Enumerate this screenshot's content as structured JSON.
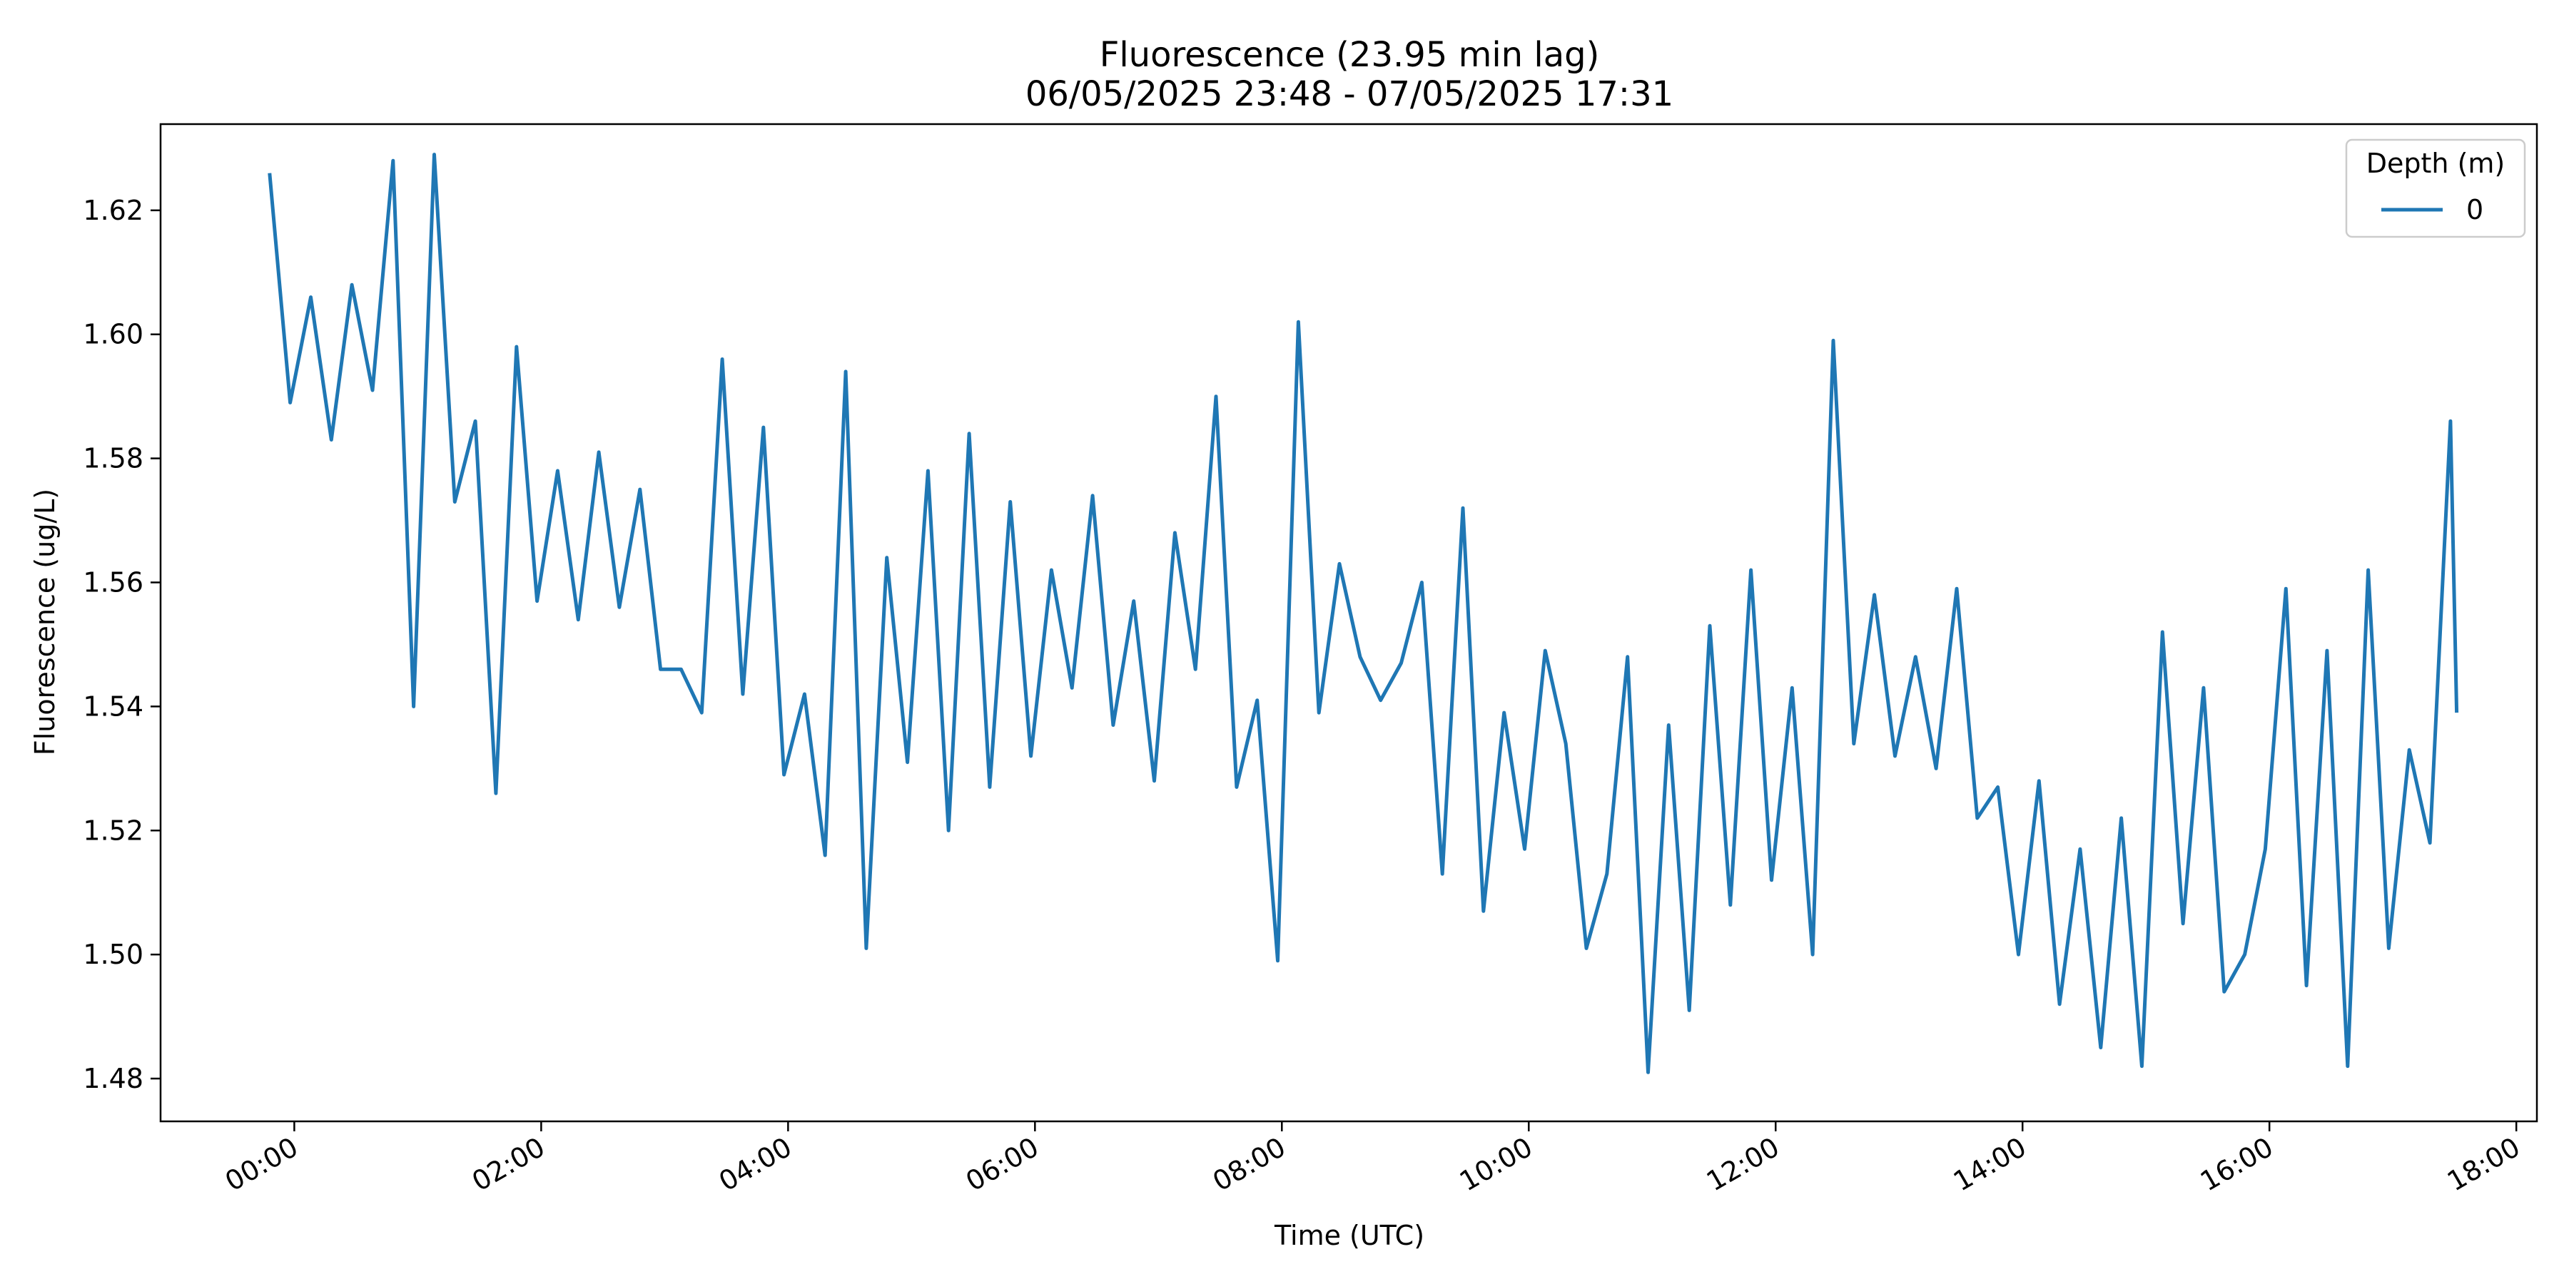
{
  "chart_data": {
    "type": "line",
    "title": "Fluorescence (23.95 min lag)",
    "subtitle": "06/05/2025 23:48 - 07/05/2025 17:31",
    "xlabel": "Time (UTC)",
    "ylabel": "Fluorescence (ug/L)",
    "xlim": [
      "06/05/2025 22:55",
      "07/05/2025 18:10"
    ],
    "ylim": [
      1.4731,
      1.6339
    ],
    "x_ticks": [
      "00:00",
      "02:00",
      "04:00",
      "06:00",
      "08:00",
      "10:00",
      "12:00",
      "14:00",
      "16:00",
      "18:00"
    ],
    "y_ticks": [
      "1.48",
      "1.50",
      "1.52",
      "1.54",
      "1.56",
      "1.58",
      "1.60",
      "1.62"
    ],
    "grid": false,
    "legend": {
      "title": "Depth (m)",
      "placement": "top-right"
    },
    "color": "#1f77b4",
    "series": [
      {
        "name": "0",
        "x": [
          "23:48",
          "23:58",
          "00:08",
          "00:18",
          "00:28",
          "00:38",
          "00:48",
          "00:58",
          "01:08",
          "01:18",
          "01:28",
          "01:38",
          "01:48",
          "01:58",
          "02:08",
          "02:18",
          "02:28",
          "02:38",
          "02:48",
          "02:58",
          "03:08",
          "03:18",
          "03:28",
          "03:38",
          "03:48",
          "03:58",
          "04:08",
          "04:18",
          "04:28",
          "04:38",
          "04:48",
          "04:58",
          "05:08",
          "05:18",
          "05:28",
          "05:38",
          "05:48",
          "05:58",
          "06:08",
          "06:18",
          "06:28",
          "06:38",
          "06:48",
          "06:58",
          "07:08",
          "07:18",
          "07:28",
          "07:38",
          "07:48",
          "07:58",
          "08:08",
          "08:18",
          "08:28",
          "08:38",
          "08:48",
          "08:58",
          "09:08",
          "09:18",
          "09:28",
          "09:38",
          "09:48",
          "09:58",
          "10:08",
          "10:18",
          "10:28",
          "10:38",
          "10:48",
          "10:58",
          "11:08",
          "11:18",
          "11:28",
          "11:38",
          "11:48",
          "11:58",
          "12:08",
          "12:18",
          "12:28",
          "12:38",
          "12:48",
          "12:58",
          "13:08",
          "13:18",
          "13:28",
          "13:38",
          "13:48",
          "13:58",
          "14:08",
          "14:18",
          "14:28",
          "14:38",
          "14:48",
          "14:58",
          "15:08",
          "15:18",
          "15:28",
          "15:38",
          "15:48",
          "15:58",
          "16:08",
          "16:18",
          "16:28",
          "16:38",
          "16:48",
          "16:58",
          "17:08",
          "17:18",
          "17:28",
          "17:31"
        ],
        "values": [
          1.626,
          1.589,
          1.606,
          1.583,
          1.608,
          1.591,
          1.628,
          1.54,
          1.629,
          1.573,
          1.586,
          1.526,
          1.598,
          1.557,
          1.578,
          1.554,
          1.581,
          1.556,
          1.575,
          1.546,
          1.546,
          1.539,
          1.596,
          1.542,
          1.585,
          1.529,
          1.542,
          1.516,
          1.594,
          1.501,
          1.564,
          1.531,
          1.578,
          1.52,
          1.584,
          1.527,
          1.573,
          1.532,
          1.562,
          1.543,
          1.574,
          1.537,
          1.557,
          1.528,
          1.568,
          1.546,
          1.59,
          1.527,
          1.541,
          1.499,
          1.602,
          1.539,
          1.563,
          1.548,
          1.541,
          1.547,
          1.56,
          1.513,
          1.572,
          1.507,
          1.539,
          1.517,
          1.549,
          1.534,
          1.501,
          1.513,
          1.548,
          1.481,
          1.537,
          1.491,
          1.553,
          1.508,
          1.562,
          1.512,
          1.543,
          1.5,
          1.599,
          1.534,
          1.558,
          1.532,
          1.548,
          1.53,
          1.559,
          1.522,
          1.527,
          1.5,
          1.528,
          1.492,
          1.517,
          1.485,
          1.522,
          1.482,
          1.552,
          1.505,
          1.543,
          1.494,
          1.5,
          1.517,
          1.559,
          1.495,
          1.549,
          1.482,
          1.562,
          1.501,
          1.533,
          1.518,
          1.586,
          1.539
        ]
      }
    ]
  }
}
